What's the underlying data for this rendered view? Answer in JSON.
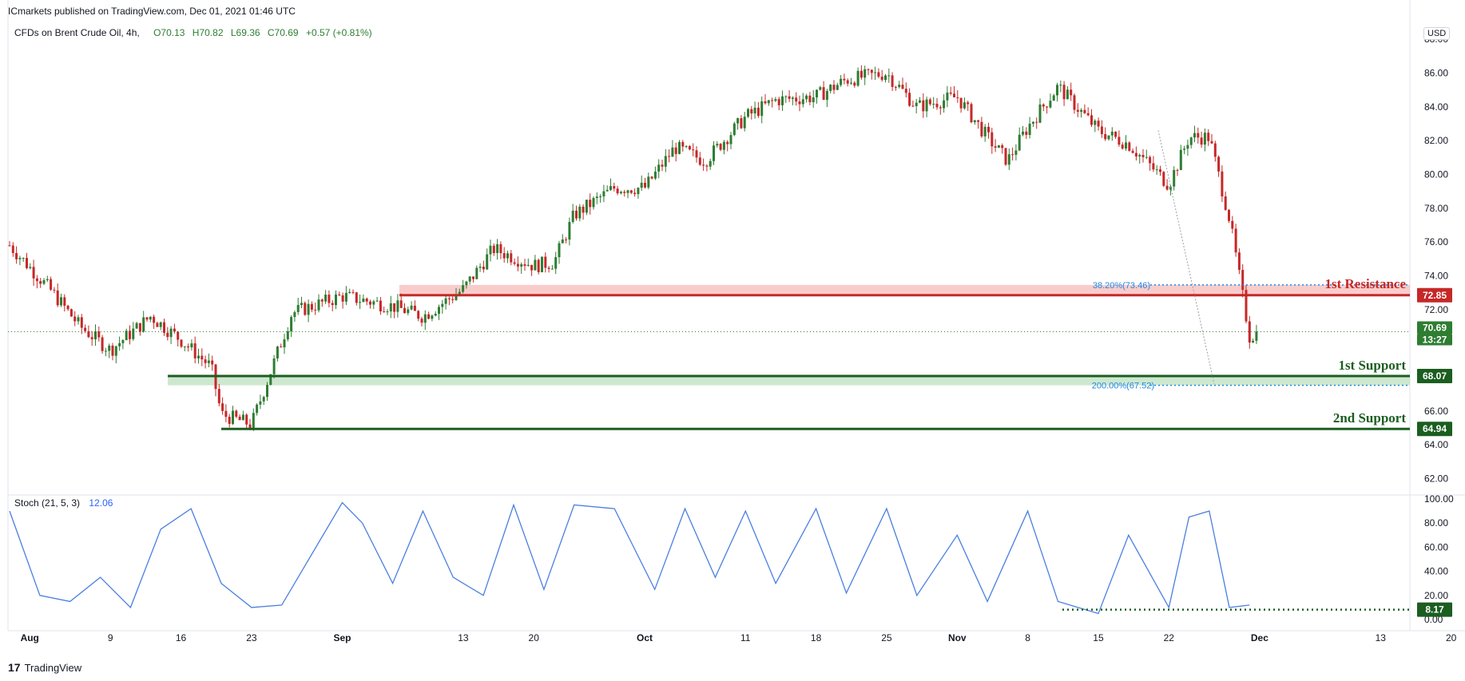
{
  "header": {
    "publisher": "ICmarkets published on TradingView.com, Dec 01, 2021 01:46 UTC"
  },
  "legend": {
    "symbol": "CFDs on Brent Crude Oil, 4h,",
    "open": "O70.13",
    "high": "H70.82",
    "low": "L69.36",
    "close": "C70.69",
    "change": "+0.57 (+0.81%)"
  },
  "currency": "USD",
  "stoch": {
    "label": "Stoch (21, 5, 3)",
    "value": "12.06",
    "last_badge": "8.17"
  },
  "footer": {
    "brand": "TradingView"
  },
  "colors": {
    "up": "#2e7d32",
    "down": "#c62828",
    "resistance": "#c62828",
    "support": "#1b5e20",
    "fib": "#1e88e5",
    "stoch_line": "#4a7fe0",
    "price_badge": "#2e7d32"
  },
  "chart_data": [
    {
      "type": "candlestick",
      "title": "",
      "price_axis": {
        "ticks": [
          "88.00",
          "86.00",
          "84.00",
          "82.00",
          "80.00",
          "78.00",
          "76.00",
          "74.00",
          "72.00",
          "66.00",
          "64.00",
          "62.00"
        ],
        "range": [
          61.5,
          89.0
        ]
      },
      "time_axis": {
        "ticks": [
          "Aug",
          "9",
          "16",
          "23",
          "Sep",
          "13",
          "20",
          "Oct",
          "11",
          "18",
          "25",
          "Nov",
          "8",
          "15",
          "22",
          "Dec",
          "13",
          "20"
        ]
      },
      "series": [
        {
          "name": "",
          "type": "close_path",
          "x": [
            "Jul 30",
            "Aug 3",
            "Aug 6",
            "Aug 9",
            "Aug 13",
            "Aug 16",
            "Aug 19",
            "Aug 20",
            "Aug 23",
            "Aug 25",
            "Aug 27",
            "Sep 1",
            "Sep 6",
            "Sep 9",
            "Sep 13",
            "Sep 16",
            "Sep 20",
            "Sep 22",
            "Sep 24",
            "Sep 28",
            "Oct 1",
            "Oct 4",
            "Oct 7",
            "Oct 11",
            "Oct 14",
            "Oct 18",
            "Oct 21",
            "Oct 25",
            "Oct 28",
            "Nov 1",
            "Nov 4",
            "Nov 6",
            "Nov 8",
            "Nov 11",
            "Nov 15",
            "Nov 18",
            "Nov 22",
            "Nov 24",
            "Nov 26",
            "Nov 28",
            "Nov 30",
            "Dec 1"
          ],
          "y": [
            75.8,
            73.2,
            71.0,
            69.6,
            71.6,
            70.2,
            68.6,
            65.8,
            65.2,
            68.5,
            71.8,
            72.8,
            72.2,
            71.6,
            73.2,
            75.6,
            74.6,
            74.8,
            77.6,
            79.2,
            79.2,
            81.6,
            80.8,
            83.4,
            84.4,
            84.6,
            85.6,
            86.0,
            84.0,
            84.6,
            82.2,
            80.8,
            82.8,
            85.2,
            82.6,
            81.8,
            79.4,
            82.2,
            82.2,
            77.4,
            70.4,
            70.7
          ]
        }
      ],
      "price_labels": [
        "72.85",
        "70.69",
        "13:27",
        "68.07",
        "64.94"
      ],
      "levels": [
        {
          "name": "1st Resistance",
          "value": 72.85,
          "zone": [
            72.85,
            73.46
          ]
        },
        {
          "name": "1st Support",
          "value": 68.07,
          "zone": [
            67.52,
            68.07
          ]
        },
        {
          "name": "2nd Support",
          "value": 64.94
        }
      ],
      "fib_labels": [
        "38.20%(73.46)",
        "200.00%(67.52)"
      ],
      "current_price": 70.69
    },
    {
      "type": "line",
      "title": "",
      "y_axis": {
        "ticks": [
          "100.00",
          "80.00",
          "60.00",
          "40.00",
          "20.00",
          "0.00"
        ],
        "range": [
          0,
          100
        ]
      },
      "series": [
        {
          "name": "",
          "x": [
            "Jul 30",
            "Aug 2",
            "Aug 5",
            "Aug 8",
            "Aug 11",
            "Aug 14",
            "Aug 17",
            "Aug 20",
            "Aug 23",
            "Aug 26",
            "Sep 1",
            "Sep 3",
            "Sep 6",
            "Sep 9",
            "Sep 12",
            "Sep 15",
            "Sep 18",
            "Sep 21",
            "Sep 24",
            "Sep 28",
            "Oct 2",
            "Oct 5",
            "Oct 8",
            "Oct 11",
            "Oct 14",
            "Oct 18",
            "Oct 21",
            "Oct 25",
            "Oct 28",
            "Nov 1",
            "Nov 4",
            "Nov 8",
            "Nov 11",
            "Nov 15",
            "Nov 18",
            "Nov 22",
            "Nov 24",
            "Nov 26",
            "Nov 28",
            "Nov 30"
          ],
          "values": [
            90,
            20,
            15,
            35,
            10,
            75,
            92,
            30,
            10,
            12,
            97,
            80,
            30,
            90,
            35,
            20,
            95,
            25,
            95,
            92,
            25,
            92,
            35,
            90,
            30,
            92,
            22,
            92,
            20,
            70,
            15,
            90,
            15,
            5,
            70,
            10,
            85,
            90,
            10,
            12
          ]
        }
      ],
      "levels": [
        {
          "value": 8.17
        }
      ]
    }
  ]
}
